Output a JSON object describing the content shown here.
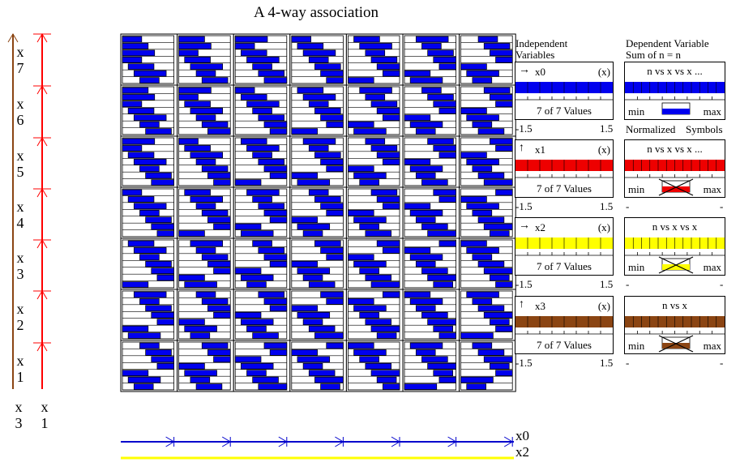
{
  "title": "A 4-way association",
  "grid": {
    "rows": 7,
    "cols": 7,
    "bar_color": "#0000ee",
    "cells": [
      {
        "row_label": "7",
        "x1_level": 7
      },
      {
        "row_label": "6",
        "x1_level": 6
      },
      {
        "row_label": "5",
        "x1_level": 5
      },
      {
        "row_label": "4",
        "x1_level": 4
      },
      {
        "row_label": "3",
        "x1_level": 3
      },
      {
        "row_label": "2",
        "x1_level": 2
      },
      {
        "row_label": "1",
        "x1_level": 1
      }
    ]
  },
  "left_axis": {
    "x3_color": "#8b4513",
    "x1_color": "#ff0000",
    "row_labels": [
      "x 7",
      "x 6",
      "x 5",
      "x 4",
      "x 3",
      "x 2",
      "x 1"
    ],
    "x3_label": "x",
    "x3_num": "3",
    "x1_label": "x",
    "x1_num": "1"
  },
  "bottom_axis": {
    "x0_color": "#0000cc",
    "x2_color": "#ffff00",
    "x0_label": "x0",
    "x2_label": "x2"
  },
  "independent": {
    "heading_1": "Independent",
    "heading_2": "Variables",
    "vars": [
      {
        "name": "x0",
        "arrow": "→",
        "tag": "(x)",
        "color": "#0000ee",
        "values": "7 of 7 Values",
        "min": "-1.5",
        "max": "1.5"
      },
      {
        "name": "x1",
        "arrow": "↑",
        "tag": "(x)",
        "color": "#ee0000",
        "values": "7 of 7 Values",
        "min": "-1.5",
        "max": "1.5"
      },
      {
        "name": "x2",
        "arrow": "→",
        "tag": "(x)",
        "color": "#ffff00",
        "values": "7 of 7 Values",
        "min": "-1.5",
        "max": "1.5"
      },
      {
        "name": "x3",
        "arrow": "↑",
        "tag": "(x)",
        "color": "#8b4513",
        "values": "7 of 7 Values",
        "min": "-1.5",
        "max": "1.5"
      }
    ]
  },
  "dependent": {
    "heading_1": "Dependent Variable",
    "heading_2": "Sum of n = n",
    "normalized": "Normalized",
    "symbols": "Symbols",
    "panels": [
      {
        "title": "n vs x vs x ...",
        "color": "#0000ee",
        "min": "min",
        "max": "max",
        "crossed": false,
        "below_left": "",
        "below_right": ""
      },
      {
        "title": "n vs x vs x ...",
        "color": "#ee0000",
        "min": "min",
        "max": "max",
        "crossed": true,
        "below_left": "-",
        "below_right": "-"
      },
      {
        "title": "n vs x vs x",
        "color": "#ffff00",
        "min": "min",
        "max": "max",
        "crossed": true,
        "below_left": "-",
        "below_right": "-"
      },
      {
        "title": "n vs x",
        "color": "#8b4513",
        "min": "min",
        "max": "max",
        "crossed": true,
        "below_left": "-",
        "below_right": "-"
      }
    ]
  }
}
